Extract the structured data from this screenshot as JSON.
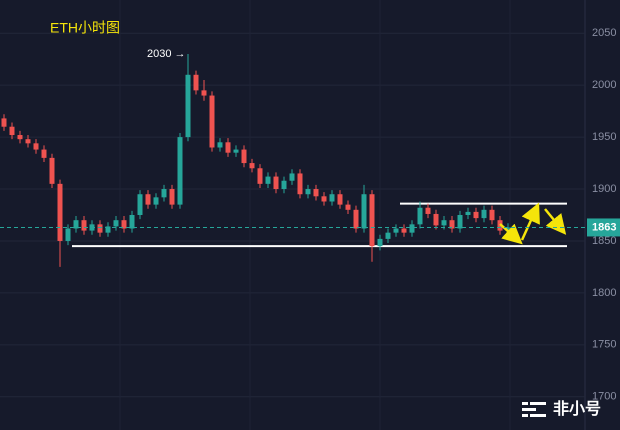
{
  "chart_data": {
    "type": "candlestick",
    "title": "ETH小时图",
    "annotation": "2030 →",
    "up_color": "#26a69a",
    "down_color": "#ef5350",
    "open": [
      1968,
      1960,
      1952,
      1948,
      1944,
      1938,
      1930,
      1905,
      1850,
      1862,
      1870,
      1860,
      1866,
      1858,
      1864,
      1870,
      1862,
      1875,
      1895,
      1885,
      1892,
      1900,
      1885,
      1950,
      2010,
      1995,
      1990,
      1940,
      1945,
      1935,
      1938,
      1925,
      1920,
      1905,
      1912,
      1900,
      1908,
      1915,
      1895,
      1900,
      1893,
      1888,
      1895,
      1885,
      1880,
      1862,
      1895,
      1845,
      1852,
      1858,
      1862,
      1858,
      1866,
      1882,
      1876,
      1865,
      1870,
      1862,
      1875,
      1878,
      1872,
      1880,
      1870,
      1860
    ],
    "high": [
      1972,
      1964,
      1956,
      1952,
      1948,
      1942,
      1934,
      1909,
      1866,
      1874,
      1874,
      1870,
      1870,
      1868,
      1874,
      1874,
      1879,
      1899,
      1899,
      1896,
      1904,
      1904,
      1954,
      2030,
      2014,
      2005,
      1994,
      1949,
      1949,
      1942,
      1942,
      1929,
      1924,
      1916,
      1916,
      1912,
      1919,
      1919,
      1904,
      1904,
      1897,
      1899,
      1899,
      1889,
      1884,
      1904,
      1899,
      1856,
      1862,
      1866,
      1866,
      1870,
      1888,
      1886,
      1880,
      1874,
      1874,
      1879,
      1882,
      1882,
      1884,
      1884,
      1874,
      1867
    ],
    "low": [
      1956,
      1948,
      1944,
      1940,
      1934,
      1926,
      1901,
      1825,
      1846,
      1858,
      1856,
      1856,
      1854,
      1854,
      1860,
      1858,
      1858,
      1871,
      1881,
      1881,
      1888,
      1881,
      1881,
      1946,
      1991,
      1985,
      1936,
      1936,
      1931,
      1931,
      1921,
      1916,
      1901,
      1901,
      1896,
      1896,
      1904,
      1891,
      1891,
      1889,
      1884,
      1884,
      1881,
      1876,
      1858,
      1858,
      1830,
      1841,
      1848,
      1854,
      1854,
      1854,
      1862,
      1872,
      1861,
      1861,
      1858,
      1858,
      1871,
      1868,
      1868,
      1866,
      1856,
      1856
    ],
    "close": [
      1960,
      1952,
      1948,
      1944,
      1938,
      1930,
      1905,
      1850,
      1862,
      1870,
      1860,
      1866,
      1858,
      1864,
      1870,
      1862,
      1875,
      1895,
      1885,
      1892,
      1900,
      1885,
      1950,
      2010,
      1995,
      1990,
      1940,
      1945,
      1935,
      1938,
      1925,
      1920,
      1905,
      1912,
      1900,
      1908,
      1915,
      1895,
      1900,
      1893,
      1888,
      1895,
      1885,
      1880,
      1862,
      1895,
      1845,
      1852,
      1858,
      1862,
      1858,
      1866,
      1882,
      1876,
      1865,
      1870,
      1862,
      1875,
      1878,
      1872,
      1880,
      1870,
      1860,
      1863
    ],
    "ylim": [
      1668,
      2082
    ],
    "yticks": [
      1700,
      1750,
      1800,
      1850,
      1900,
      1950,
      2000,
      2050
    ],
    "last_price": 1863,
    "levels": [
      1886,
      1845
    ],
    "watermark": "非小号"
  }
}
